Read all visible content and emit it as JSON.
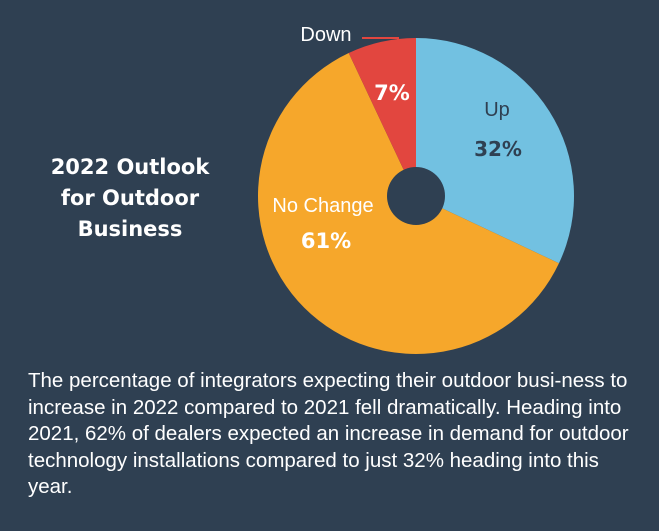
{
  "chart_data": {
    "type": "pie",
    "title": "2022 Outlook for Outdoor Business",
    "slices": [
      {
        "label": "Up",
        "value": 32,
        "value_label": "32%",
        "color": "#72c1e1"
      },
      {
        "label": "No Change",
        "value": 61,
        "value_label": "61%",
        "color": "#f6a72b"
      },
      {
        "label": "Down",
        "value": 7,
        "value_label": "7%",
        "color": "#e2463f"
      }
    ],
    "donut_hole": true,
    "background": "#2f4052",
    "label_color": "#ffffff",
    "leader_line_color": "#e2463f"
  },
  "caption": "The percentage of integrators expecting their outdoor busi-ness to increase in 2022 compared to 2021 fell dramatically. Heading into 2021, 62% of dealers expected an increase in demand for outdoor technology installations compared to just 32% heading into this year."
}
